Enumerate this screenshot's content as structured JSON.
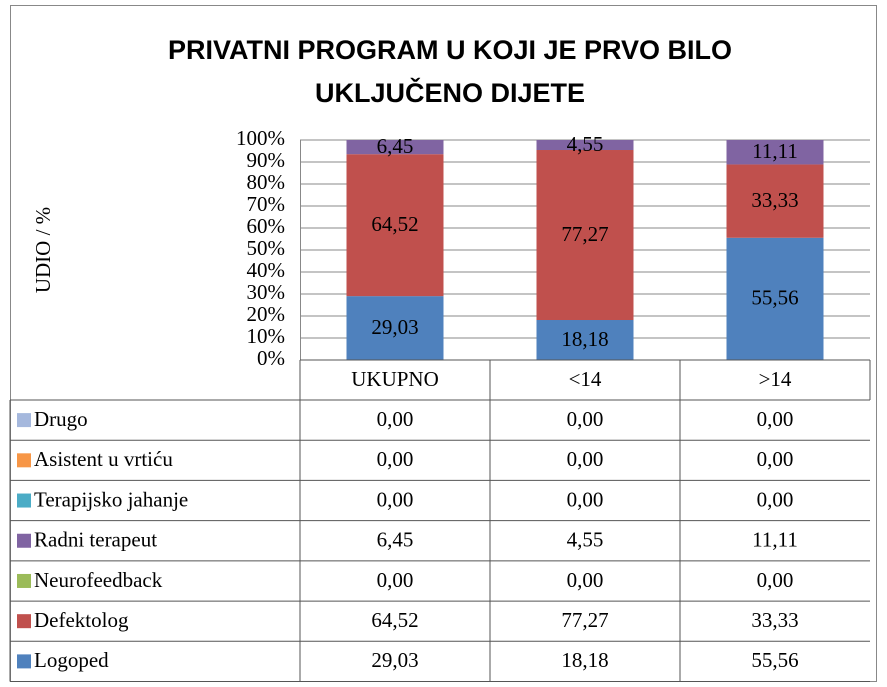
{
  "chart_data": {
    "type": "stacked_bar",
    "title": [
      "PRIVATNI PROGRAM U KOJI JE PRVO BILO",
      "UKLJUČENO DIJETE"
    ],
    "y_label": "UDIO  / %",
    "categories": [
      "UKUPNO",
      "<14",
      ">14"
    ],
    "ylim": [
      0,
      100
    ],
    "yticks": [
      {
        "value": 0,
        "label": "0%"
      },
      {
        "value": 10,
        "label": "10%"
      },
      {
        "value": 20,
        "label": "20%"
      },
      {
        "value": 30,
        "label": "30%"
      },
      {
        "value": 40,
        "label": "40%"
      },
      {
        "value": 50,
        "label": "50%"
      },
      {
        "value": 60,
        "label": "60%"
      },
      {
        "value": 70,
        "label": "70%"
      },
      {
        "value": 80,
        "label": "80%"
      },
      {
        "value": 90,
        "label": "90%"
      },
      {
        "value": 100,
        "label": "100%"
      }
    ],
    "grid": true,
    "series": [
      {
        "name": "Logoped",
        "color": "#4f81bd",
        "values": [
          29.03,
          18.18,
          55.56
        ],
        "value_labels": [
          "29,03",
          "18,18",
          "55,56"
        ]
      },
      {
        "name": "Defektolog",
        "color": "#c0504d",
        "values": [
          64.52,
          77.27,
          33.33
        ],
        "value_labels": [
          "64,52",
          "77,27",
          "33,33"
        ]
      },
      {
        "name": "Neurofeedback",
        "color": "#9bbb59",
        "values": [
          0,
          0,
          0
        ],
        "value_labels": [
          "0,00",
          "0,00",
          "0,00"
        ]
      },
      {
        "name": "Radni terapeut",
        "color": "#8064a2",
        "values": [
          6.45,
          4.55,
          11.11
        ],
        "value_labels": [
          "6,45",
          "4,55",
          "11,11"
        ]
      },
      {
        "name": "Terapijsko jahanje",
        "color": "#4bacc6",
        "values": [
          0,
          0,
          0
        ],
        "value_labels": [
          "0,00",
          "0,00",
          "0,00"
        ]
      },
      {
        "name": "Asistent u vrtiću",
        "color": "#f79646",
        "values": [
          0,
          0,
          0
        ],
        "value_labels": [
          "0,00",
          "0,00",
          "0,00"
        ]
      },
      {
        "name": "Drugo",
        "color": "#a5b8dd",
        "values": [
          0,
          0,
          0
        ],
        "value_labels": [
          "0,00",
          "0,00",
          "0,00"
        ]
      }
    ]
  }
}
